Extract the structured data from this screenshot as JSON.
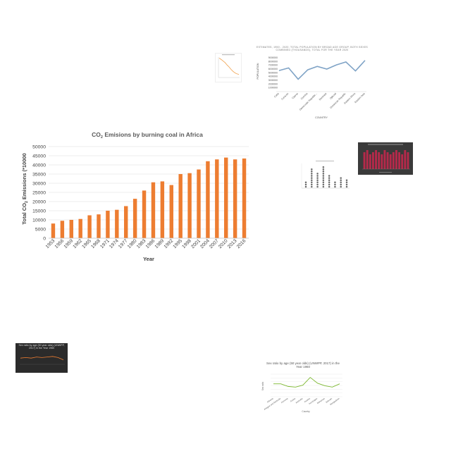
{
  "chart_data": [
    {
      "type": "bar",
      "title": "CO₂ Emisions by burning coal in Africa",
      "title_main": "CO",
      "title_sub": "2",
      "title_rest": " Emisions by burning coal in Africa",
      "xlabel": "Year",
      "ylabel": "Total CO₂ Emissions (*10000",
      "ylabel_main": "Total CO",
      "ylabel_sub": "2",
      "ylabel_rest": " Emissions (*10000",
      "categories": [
        "1953",
        "1956",
        "1959",
        "1962",
        "1965",
        "1968",
        "1971",
        "1974",
        "1977",
        "1980",
        "1983",
        "1986",
        "1989",
        "1992",
        "1995",
        "1998",
        "2001",
        "2004",
        "2007",
        "2010",
        "2013",
        "2016"
      ],
      "values": [
        8000,
        9500,
        10000,
        10500,
        12500,
        13000,
        15000,
        15500,
        17500,
        21500,
        26000,
        30500,
        31000,
        29000,
        35000,
        35500,
        37500,
        42000,
        43000,
        44000,
        43000,
        43500
      ],
      "ylim": [
        0,
        50000
      ],
      "yticks": [
        "0",
        "5000",
        "10000",
        "15000",
        "20000",
        "25000",
        "30000",
        "35000",
        "40000",
        "45000",
        "50000"
      ],
      "grid": true,
      "bar_color": "#ed7d31"
    },
    {
      "type": "line",
      "title": "ESTIMATES, 1950 - 2020: TOTAL POPULATION BY BROAD AGE GROUP, BOTH SEXES COMBINED (THOUSANDS), TOTAL FOR THE YEAR 2020",
      "xlabel": "COUNTRY",
      "ylabel": "POPULATION",
      "categories": [
        "Cuba",
        "Curacao",
        "Cyprus",
        "Czechia",
        "Democratic Republic...",
        "Denmark",
        "Djibouti",
        "Dominican Republic",
        "Eastern Africa",
        "Eastern Asia"
      ],
      "values": [
        5600000,
        6300000,
        3300000,
        5800000,
        6700000,
        6000000,
        7100000,
        7900000,
        5500000,
        8300000
      ],
      "yticks": [
        "1000000",
        "2000000",
        "3000000",
        "4000000",
        "5000000",
        "6000000",
        "7000000",
        "8000000",
        "9000000"
      ],
      "ylim": [
        0,
        9000000
      ],
      "line_color": "#7fa3c6"
    },
    {
      "type": "line",
      "values": [
        95,
        88,
        80,
        72,
        60,
        50,
        38,
        28,
        20,
        15,
        12
      ],
      "ylim": [
        0,
        100
      ],
      "line_color": "#f0a04b"
    },
    {
      "type": "scatter",
      "values": [
        3,
        9,
        7,
        10,
        6,
        3,
        5,
        4
      ],
      "ylim": [
        0,
        12
      ]
    },
    {
      "type": "bar",
      "values": [
        8,
        9,
        7,
        8,
        9,
        8,
        7,
        9,
        8,
        7,
        8,
        9,
        8,
        7,
        9,
        8
      ],
      "ylim": [
        0,
        10
      ],
      "bar_color": "#b5294a",
      "background": "#3a3a3a"
    },
    {
      "type": "line",
      "title": "Sex ratio by age (50 year olds) (UNWPP, 2017) in the Year 1960",
      "values": [
        96,
        97,
        96,
        98,
        97,
        98,
        99,
        97,
        93
      ],
      "ylim": [
        85,
        105
      ],
      "line_color": "#ed7d31",
      "background": "#2b2b2b"
    },
    {
      "type": "line",
      "title": "Sex ratio by age (50 year olds) (UNWPP, 2017) in the Year 1960",
      "xlabel": "Country",
      "ylabel": "Sex ratio",
      "categories": [
        "Albania",
        "Antigua and Barbuda",
        "Armenia",
        "Aruba",
        "Australia",
        "Austria",
        "Azerbaijan",
        "Bahamas",
        "Bahrain",
        "Bangladesh"
      ],
      "values": [
        100,
        100,
        96,
        95,
        98,
        110,
        101,
        97,
        95,
        100
      ],
      "ylim": [
        80,
        115
      ],
      "line_color": "#7cb82f"
    }
  ]
}
